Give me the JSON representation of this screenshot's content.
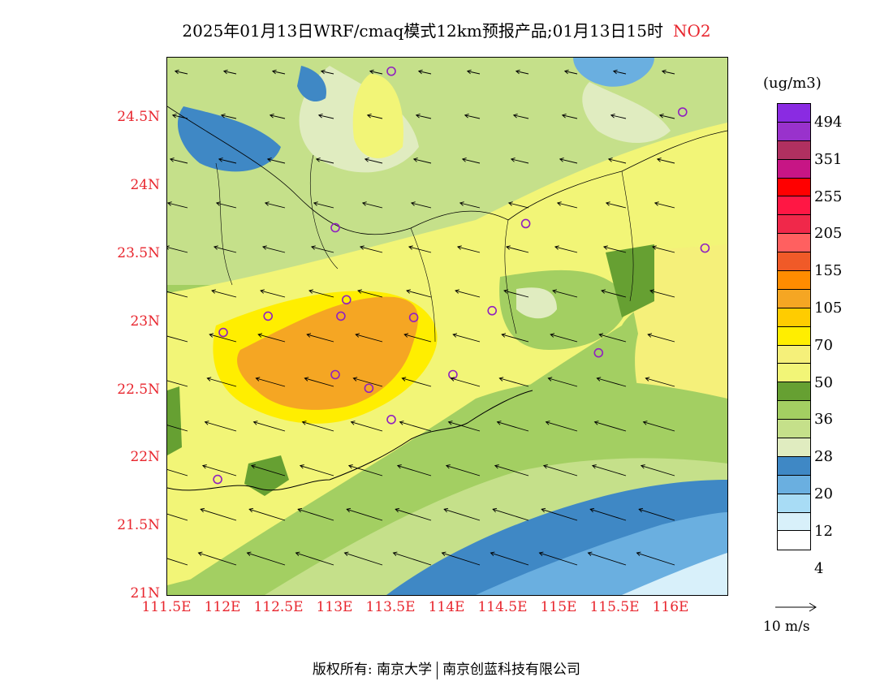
{
  "header": {
    "title": "2025年01月13日WRF/cmaq模式12km预报产品;01月13日15时",
    "pollutant": "NO2"
  },
  "axes": {
    "lat_labels": [
      "24.5N",
      "24N",
      "23.5N",
      "23N",
      "22.5N",
      "22N",
      "21.5N",
      "21N"
    ],
    "lat_values": [
      24.5,
      24.0,
      23.5,
      23.0,
      22.5,
      22.0,
      21.5,
      21.0
    ],
    "lon_labels": [
      "111.5E",
      "112E",
      "112.5E",
      "113E",
      "113.5E",
      "114E",
      "114.5E",
      "115E",
      "115.5E",
      "116E"
    ],
    "lon_values": [
      111.5,
      112.0,
      112.5,
      113.0,
      113.5,
      114.0,
      114.5,
      115.0,
      115.5,
      116.0
    ],
    "lon_range": [
      111.5,
      116.5
    ],
    "lat_range": [
      21.0,
      24.95
    ]
  },
  "legend": {
    "unit": "(ug/m3)",
    "levels": [
      "494",
      "351",
      "255",
      "205",
      "155",
      "105",
      "70",
      "50",
      "36",
      "28",
      "20",
      "12",
      "4"
    ],
    "colors": [
      "#8a2be2",
      "#9932cc",
      "#b03060",
      "#c71585",
      "#ff0000",
      "#ff1744",
      "#f0284a",
      "#ff6060",
      "#f05a28",
      "#ff8c00",
      "#f5a623",
      "#ffcc00",
      "#ffee00",
      "#f5f07a",
      "#f2f577",
      "#66a032",
      "#a3cf62",
      "#c5e08a",
      "#e0ecc0",
      "#3f88c5",
      "#6aafe0",
      "#a8dcf5",
      "#d8f0fa",
      "#ffffff"
    ]
  },
  "wind_reference": {
    "label": "10 m/s"
  },
  "footer": {
    "copyright": "版权所有: 南京大学",
    "company": "南京创蓝科技有限公司"
  },
  "stations": [
    {
      "lon": 113.5,
      "lat": 24.85
    },
    {
      "lon": 116.1,
      "lat": 24.55
    },
    {
      "lon": 113.0,
      "lat": 23.7
    },
    {
      "lon": 114.7,
      "lat": 23.73
    },
    {
      "lon": 116.3,
      "lat": 23.55
    },
    {
      "lon": 113.1,
      "lat": 23.17
    },
    {
      "lon": 112.4,
      "lat": 23.05
    },
    {
      "lon": 113.05,
      "lat": 23.05
    },
    {
      "lon": 113.7,
      "lat": 23.04
    },
    {
      "lon": 114.4,
      "lat": 23.09
    },
    {
      "lon": 112.0,
      "lat": 22.93
    },
    {
      "lon": 115.35,
      "lat": 22.78
    },
    {
      "lon": 113.0,
      "lat": 22.62
    },
    {
      "lon": 113.3,
      "lat": 22.52
    },
    {
      "lon": 114.05,
      "lat": 22.62
    },
    {
      "lon": 113.5,
      "lat": 22.29
    },
    {
      "lon": 111.95,
      "lat": 21.85
    }
  ]
}
